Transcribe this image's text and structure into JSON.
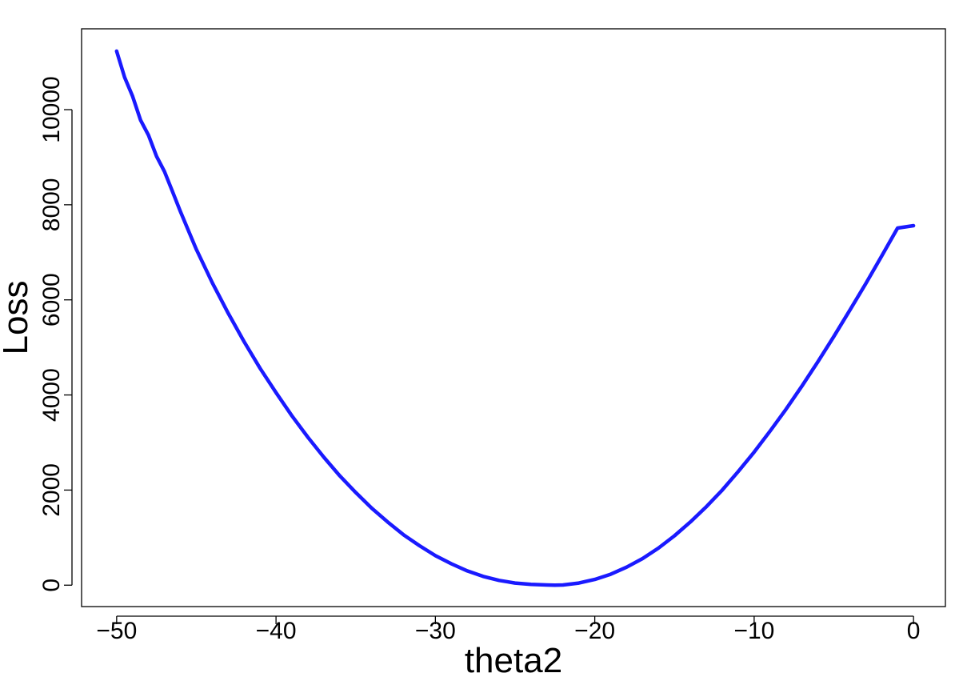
{
  "chart_data": {
    "type": "line",
    "title": "",
    "xlabel": "theta2",
    "ylabel": "Loss",
    "xlim": [
      -52.2,
      2.0
    ],
    "ylim": [
      -450,
      11700
    ],
    "xticks": [
      -50,
      -40,
      -30,
      -20,
      -10,
      0
    ],
    "xtick_labels": [
      "−50",
      "−40",
      "−30",
      "−20",
      "−10",
      "0"
    ],
    "yticks": [
      0,
      2000,
      4000,
      6000,
      8000,
      10000
    ],
    "ytick_labels": [
      "0",
      "2000",
      "4000",
      "6000",
      "8000",
      "10000"
    ],
    "grid": false,
    "legend": "none",
    "series": [
      {
        "color": "#1a1aff",
        "x": [
          -50,
          -49.5,
          -49,
          -48.5,
          -48,
          -47.5,
          -47,
          -46.5,
          -46,
          -45,
          -44,
          -43,
          -42,
          -41,
          -40,
          -39,
          -38,
          -37,
          -36,
          -35,
          -34,
          -33,
          -32,
          -31,
          -30,
          -29,
          -28,
          -27,
          -26,
          -25,
          -24,
          -23,
          -22.5,
          -22,
          -21,
          -20,
          -19,
          -18,
          -17,
          -16,
          -15,
          -14,
          -13,
          -12,
          -11,
          -10,
          -9,
          -8,
          -7,
          -6,
          -5,
          -4,
          -3,
          -2,
          -1,
          0
        ],
        "y": [
          11230,
          10680,
          10280,
          9780,
          9460,
          9020,
          8700,
          8280,
          7860,
          7060,
          6360,
          5720,
          5120,
          4560,
          4050,
          3560,
          3110,
          2690,
          2300,
          1950,
          1620,
          1330,
          1060,
          830,
          620,
          450,
          300,
          185,
          100,
          45,
          18,
          5,
          0,
          5,
          45,
          120,
          230,
          380,
          560,
          780,
          1040,
          1330,
          1650,
          2000,
          2390,
          2800,
          3240,
          3700,
          4190,
          4700,
          5230,
          5780,
          6340,
          6920,
          7510,
          7560
        ]
      }
    ]
  }
}
